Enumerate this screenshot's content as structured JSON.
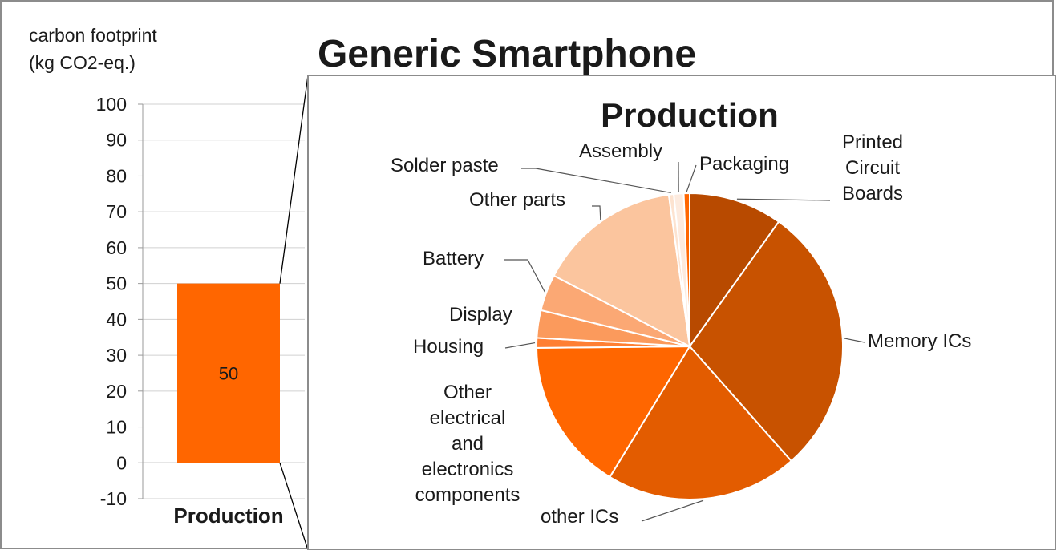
{
  "chart_data": [
    {
      "type": "bar",
      "title": "Generic Smartphone",
      "ylabel": "carbon footprint (kg CO2-eq.)",
      "ylabel_lines": [
        "carbon footprint",
        "(kg CO2-eq.)"
      ],
      "categories": [
        "Production"
      ],
      "values": [
        50
      ],
      "data_labels": [
        "50"
      ],
      "ylim": [
        -10,
        100
      ],
      "yticks": [
        -10,
        0,
        10,
        20,
        30,
        40,
        50,
        60,
        70,
        80,
        90,
        100
      ],
      "grid": true,
      "bar_color": "#ff6600"
    },
    {
      "type": "pie",
      "title": "Production",
      "slices": [
        {
          "label": "Printed Circuit Boards",
          "label_lines": [
            "Printed",
            "Circuit",
            "Boards"
          ],
          "value": 9.5,
          "color": "#b84a00"
        },
        {
          "label": "Memory ICs",
          "label_lines": [
            "Memory ICs"
          ],
          "value": 27.5,
          "color": "#c85200"
        },
        {
          "label": "other ICs",
          "label_lines": [
            "other ICs"
          ],
          "value": 19.5,
          "color": "#e35c00"
        },
        {
          "label": "Other electrical and electronics components",
          "label_lines": [
            "Other",
            "electrical",
            "and",
            "electronics",
            "components"
          ],
          "value": 15.5,
          "color": "#ff6600"
        },
        {
          "label": "Housing",
          "label_lines": [
            "Housing"
          ],
          "value": 1.0,
          "color": "#ff7f33"
        },
        {
          "label": "Display",
          "label_lines": [
            "Display"
          ],
          "value": 2.8,
          "color": "#fb9a5c"
        },
        {
          "label": "Battery",
          "label_lines": [
            "Battery"
          ],
          "value": 3.7,
          "color": "#fba874"
        },
        {
          "label": "Other parts",
          "label_lines": [
            "Other parts"
          ],
          "value": 14.6,
          "color": "#fbc59e"
        },
        {
          "label": "Solder paste",
          "label_lines": [
            "Solder paste"
          ],
          "value": 0.5,
          "color": "#fde3d0"
        },
        {
          "label": "Assembly",
          "label_lines": [
            "Assembly"
          ],
          "value": 1.0,
          "color": "#fdebdf"
        },
        {
          "label": "Packaging",
          "label_lines": [
            "Packaging"
          ],
          "value": 0.6,
          "color": "#ff6600"
        }
      ]
    }
  ]
}
